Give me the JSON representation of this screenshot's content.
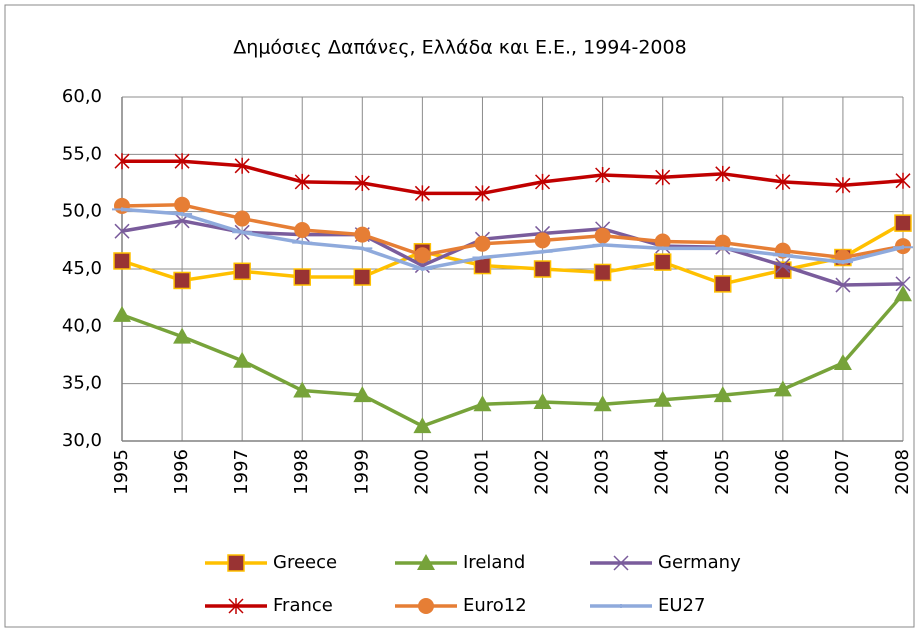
{
  "chart_data": {
    "type": "line",
    "title": "Δημόσιες Δαπάνες, Ελλάδα και Ε.Ε., 1994-2008",
    "categories": [
      "1995",
      "1996",
      "1997",
      "1998",
      "1999",
      "2000",
      "2001",
      "2002",
      "2003",
      "2004",
      "2005",
      "2006",
      "2007",
      "2008"
    ],
    "series": [
      {
        "name": "Greece",
        "color": "#ffc000",
        "marker": "square",
        "marker_color": "#993333",
        "values": [
          45.7,
          44.0,
          44.8,
          44.3,
          44.3,
          46.5,
          45.3,
          45.0,
          44.7,
          45.6,
          43.7,
          44.9,
          46.0,
          49.0
        ]
      },
      {
        "name": "Ireland",
        "color": "#77a33a",
        "marker": "triangle",
        "marker_color": "#77a33a",
        "values": [
          41.0,
          39.1,
          37.0,
          34.4,
          34.0,
          31.3,
          33.2,
          33.4,
          33.2,
          33.6,
          34.0,
          34.5,
          36.8,
          42.8
        ]
      },
      {
        "name": "Germany",
        "color": "#7a5c9c",
        "marker": "x",
        "marker_color": "#7a5c9c",
        "values": [
          48.3,
          49.2,
          48.2,
          48.0,
          48.0,
          45.3,
          47.6,
          48.1,
          48.5,
          47.0,
          46.9,
          45.3,
          43.6,
          43.7
        ]
      },
      {
        "name": "France",
        "color": "#c00000",
        "marker": "star",
        "marker_color": "#c00000",
        "values": [
          54.4,
          54.4,
          54.0,
          52.6,
          52.5,
          51.6,
          51.6,
          52.6,
          53.2,
          53.0,
          53.3,
          52.6,
          52.3,
          52.7
        ]
      },
      {
        "name": "Euro12",
        "color": "#e67e35",
        "marker": "circle",
        "marker_color": "#e67e35",
        "values": [
          50.5,
          50.6,
          49.4,
          48.4,
          48.0,
          46.2,
          47.2,
          47.5,
          47.9,
          47.4,
          47.3,
          46.6,
          46.0,
          47.0
        ]
      },
      {
        "name": "EU27",
        "color": "#8faadc",
        "marker": "plus",
        "marker_color": "#8faadc",
        "values": [
          50.2,
          49.8,
          48.2,
          47.3,
          46.8,
          45.0,
          46.0,
          46.5,
          47.1,
          46.8,
          46.8,
          46.2,
          45.6,
          46.9
        ]
      }
    ],
    "ylim": [
      30,
      60
    ],
    "yticks": [
      {
        "value": 30,
        "label": "30,0"
      },
      {
        "value": 35,
        "label": "35,0"
      },
      {
        "value": 40,
        "label": "40,0"
      },
      {
        "value": 45,
        "label": "45,0"
      },
      {
        "value": 50,
        "label": "50,0"
      },
      {
        "value": 55,
        "label": "55,0"
      },
      {
        "value": 60,
        "label": "60,0"
      }
    ],
    "grid": true,
    "legend": "bottom"
  }
}
